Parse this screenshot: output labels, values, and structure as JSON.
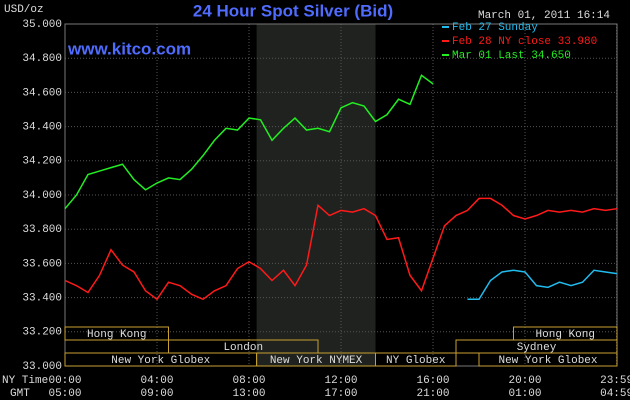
{
  "chart_data": {
    "type": "line",
    "title": "24 Hour Spot Silver (Bid)",
    "timestamp": "March 01, 2011 16:14",
    "y_unit": "USD/oz",
    "watermark": "www.kitco.com",
    "x_label": "NY Time",
    "x2_label": "GMT",
    "x": [
      0,
      0.5,
      1,
      1.5,
      2,
      2.5,
      3,
      3.5,
      4,
      4.5,
      5,
      5.5,
      6,
      6.5,
      7,
      7.5,
      8,
      8.5,
      9,
      9.5,
      10,
      10.5,
      11,
      11.5,
      12,
      12.5,
      13,
      13.5,
      14,
      14.5,
      15,
      15.5,
      16,
      16.5,
      17,
      17.5,
      18,
      18.5,
      19,
      19.5,
      20,
      20.5,
      21,
      21.5,
      22,
      22.5,
      23,
      23.5,
      24
    ],
    "xlim": [
      0,
      24
    ],
    "xticks": [
      {
        "value": 0,
        "label": "00:00"
      },
      {
        "value": 4,
        "label": "04:00"
      },
      {
        "value": 8,
        "label": "08:00"
      },
      {
        "value": 12,
        "label": "12:00"
      },
      {
        "value": 16,
        "label": "16:00"
      },
      {
        "value": 20,
        "label": "20:00"
      },
      {
        "value": 23.983,
        "label": "23:59"
      }
    ],
    "x2ticks": [
      {
        "value": 0,
        "label": "05:00"
      },
      {
        "value": 4,
        "label": "09:00"
      },
      {
        "value": 8,
        "label": "13:00"
      },
      {
        "value": 12,
        "label": "17:00"
      },
      {
        "value": 16,
        "label": "21:00"
      },
      {
        "value": 20,
        "label": "01:00"
      },
      {
        "value": 23.983,
        "label": "04:59"
      }
    ],
    "ylim": [
      33,
      35
    ],
    "yticks": [
      {
        "value": 33,
        "label": "33.000"
      },
      {
        "value": 33.2,
        "label": "33.200"
      },
      {
        "value": 33.4,
        "label": "33.400"
      },
      {
        "value": 33.6,
        "label": "33.600"
      },
      {
        "value": 33.8,
        "label": "33.800"
      },
      {
        "value": 34,
        "label": "34.000"
      },
      {
        "value": 34.2,
        "label": "34.200"
      },
      {
        "value": 34.4,
        "label": "34.400"
      },
      {
        "value": 34.6,
        "label": "34.600"
      },
      {
        "value": 34.8,
        "label": "34.800"
      },
      {
        "value": 35,
        "label": "35.000"
      }
    ],
    "grid": true,
    "highlight": [
      8.33,
      13.5
    ],
    "series": [
      {
        "name": "Feb 27 Sunday",
        "color": "#22bbee",
        "values": [
          null,
          null,
          null,
          null,
          null,
          null,
          null,
          null,
          null,
          null,
          null,
          null,
          null,
          null,
          null,
          null,
          null,
          null,
          null,
          null,
          null,
          null,
          null,
          null,
          null,
          null,
          null,
          null,
          null,
          null,
          null,
          null,
          null,
          null,
          null,
          33.39,
          33.39,
          33.5,
          33.55,
          33.56,
          33.55,
          33.47,
          33.46,
          33.49,
          33.47,
          33.49,
          33.56,
          33.55,
          33.54
        ]
      },
      {
        "name": "Feb 28 NY close 33.980",
        "color": "#ff1a1a",
        "values": [
          33.5,
          33.47,
          33.43,
          33.53,
          33.68,
          33.59,
          33.55,
          33.44,
          33.39,
          33.49,
          33.47,
          33.42,
          33.39,
          33.44,
          33.47,
          33.57,
          33.61,
          33.57,
          33.5,
          33.56,
          33.47,
          33.59,
          33.94,
          33.88,
          33.91,
          33.9,
          33.92,
          33.88,
          33.74,
          33.75,
          33.53,
          33.44,
          33.63,
          33.82,
          33.88,
          33.91,
          33.98,
          33.98,
          33.94,
          33.88,
          33.86,
          33.88,
          33.91,
          33.9,
          33.91,
          33.9,
          33.92,
          33.91,
          33.92
        ]
      },
      {
        "name": "Mar 01 Last 34.650",
        "color": "#22ee22",
        "values": [
          33.92,
          34.0,
          34.12,
          34.14,
          34.16,
          34.18,
          34.09,
          34.03,
          34.07,
          34.1,
          34.09,
          34.15,
          34.23,
          34.32,
          34.39,
          34.38,
          34.45,
          34.44,
          34.32,
          34.39,
          34.45,
          34.38,
          34.39,
          34.37,
          34.51,
          34.54,
          34.52,
          34.43,
          34.47,
          34.56,
          34.53,
          34.7,
          34.65,
          null,
          null,
          null,
          null,
          null,
          null,
          null,
          null,
          null,
          null,
          null,
          null,
          null,
          null,
          null,
          null
        ]
      }
    ],
    "sessions": [
      {
        "label": "Hong Kong",
        "start": 0,
        "end": 4.5,
        "row": 0
      },
      {
        "label": "Hong Kong",
        "start": 19.5,
        "end": 24,
        "row": 0
      },
      {
        "label": "London",
        "start": 4.5,
        "end": 11,
        "row": 1
      },
      {
        "label": "Sydney",
        "start": 17,
        "end": 24,
        "row": 1
      },
      {
        "label": "New York Globex",
        "start": 0,
        "end": 8.33,
        "row": 2
      },
      {
        "label": "New York NYMEX",
        "start": 8.33,
        "end": 13.5,
        "row": 2
      },
      {
        "label": "NY Globex",
        "start": 13.5,
        "end": 17,
        "row": 2
      },
      {
        "label": "New York Globex",
        "start": 18,
        "end": 24,
        "row": 2
      }
    ]
  }
}
